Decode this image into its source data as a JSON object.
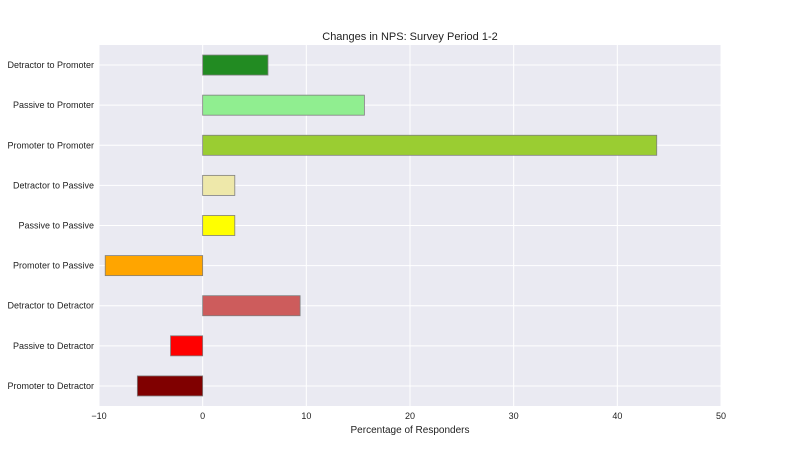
{
  "chart_data": {
    "type": "bar",
    "orientation": "horizontal",
    "title": "Changes in NPS: Survey Period 1-2",
    "xlabel": "Percentage of Responders",
    "ylabel": "",
    "xlim": [
      -10,
      50
    ],
    "xticks": [
      -10,
      0,
      10,
      20,
      30,
      40,
      50
    ],
    "grid": true,
    "categories": [
      "Detractor to Promoter",
      "Passive to Promoter",
      "Promoter to Promoter",
      "Detractor to Passive",
      "Passive to Passive",
      "Promoter to Passive",
      "Detractor to Detractor",
      "Passive to Detractor",
      "Promoter to Detractor"
    ],
    "values": [
      6.3,
      15.6,
      43.8,
      3.1,
      3.1,
      -9.4,
      9.4,
      -3.1,
      -6.3
    ],
    "colors": [
      "#228b22",
      "#90ee90",
      "#9acd32",
      "#eee8aa",
      "#ffff00",
      "#ffa500",
      "#cd5c5c",
      "#ff0000",
      "#800000"
    ]
  },
  "colors": {
    "plot_background": "#eaeaf2",
    "grid": "#ffffff",
    "bar_edge": "#7f7f7f"
  }
}
